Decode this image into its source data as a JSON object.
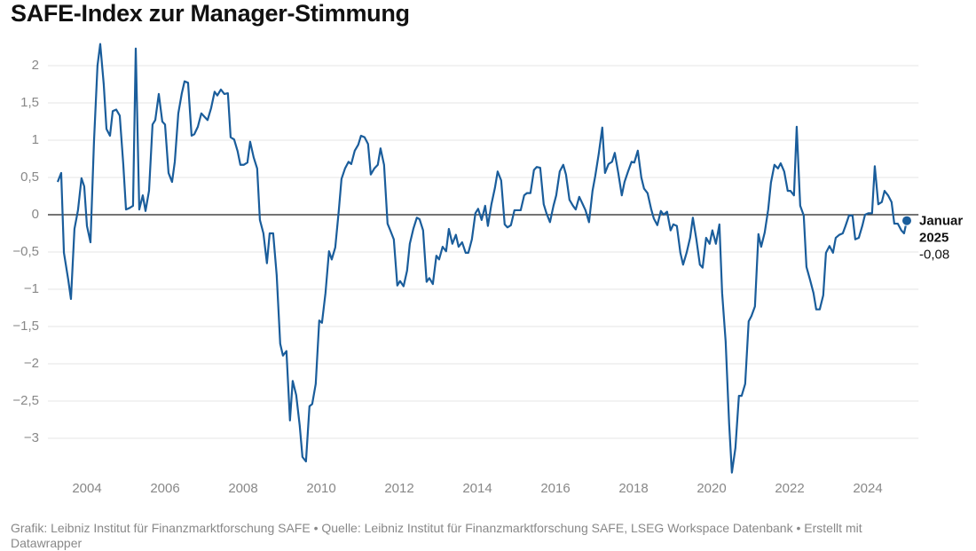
{
  "chart_data": {
    "type": "line",
    "title": "SAFE-Index zur Manager-Stimmung",
    "footer": "Grafik: Leibniz Institut für Finanzmarktforschung SAFE • Quelle: Leibniz Institut für Finanzmarktforschung SAFE, LSEG Workspace Datenbank • Erstellt mit Datawrapper",
    "annotation": {
      "text": [
        "Januar",
        "2025"
      ],
      "value_label": "-0,08"
    },
    "xlim": [
      2003,
      2025.3
    ],
    "xticks": [
      2004,
      2006,
      2008,
      2010,
      2012,
      2014,
      2016,
      2018,
      2020,
      2022,
      2024
    ],
    "ylim": [
      -3.5,
      2.3
    ],
    "yticks": [
      2,
      {
        "value": 1.5,
        "label": "1,5"
      },
      1,
      {
        "value": 0.5,
        "label": "0,5"
      },
      0,
      {
        "value": -0.5,
        "label": "−0,5"
      },
      {
        "value": -1,
        "label": "−1"
      },
      {
        "value": -1.5,
        "label": "−1,5"
      },
      {
        "value": -2,
        "label": "−2"
      },
      {
        "value": -2.5,
        "label": "−2,5"
      },
      {
        "value": -3,
        "label": "−3"
      }
    ],
    "grid": true,
    "x": [
      2003.25,
      2003.34,
      2003.41,
      2003.52,
      2003.59,
      2003.68,
      2003.77,
      2003.86,
      2003.93,
      2004.0,
      2004.09,
      2004.18,
      2004.27,
      2004.34,
      2004.43,
      2004.5,
      2004.59,
      2004.66,
      2004.75,
      2004.84,
      2004.93,
      2005.0,
      2005.09,
      2005.18,
      2005.25,
      2005.34,
      2005.43,
      2005.5,
      2005.59,
      2005.68,
      2005.75,
      2005.84,
      2005.93,
      2006.0,
      2006.09,
      2006.18,
      2006.25,
      2006.34,
      2006.43,
      2006.5,
      2006.59,
      2006.68,
      2006.75,
      2006.84,
      2006.93,
      2007.0,
      2007.09,
      2007.18,
      2007.27,
      2007.34,
      2007.43,
      2007.52,
      2007.61,
      2007.68,
      2007.77,
      2007.86,
      2007.93,
      2008.02,
      2008.11,
      2008.18,
      2008.27,
      2008.36,
      2008.43,
      2008.52,
      2008.61,
      2008.68,
      2008.77,
      2008.86,
      2008.95,
      2009.02,
      2009.11,
      2009.2,
      2009.27,
      2009.36,
      2009.45,
      2009.52,
      2009.61,
      2009.7,
      2009.77,
      2009.86,
      2009.95,
      2010.02,
      2010.11,
      2010.2,
      2010.27,
      2010.36,
      2010.45,
      2010.52,
      2010.61,
      2010.7,
      2010.77,
      2010.86,
      2010.95,
      2011.02,
      2011.11,
      2011.2,
      2011.27,
      2011.36,
      2011.45,
      2011.52,
      2011.61,
      2011.7,
      2011.77,
      2011.86,
      2011.95,
      2012.02,
      2012.11,
      2012.2,
      2012.27,
      2012.36,
      2012.45,
      2012.52,
      2012.61,
      2012.7,
      2012.77,
      2012.86,
      2012.95,
      2013.02,
      2013.11,
      2013.2,
      2013.27,
      2013.36,
      2013.45,
      2013.52,
      2013.61,
      2013.7,
      2013.77,
      2013.86,
      2013.95,
      2014.02,
      2014.11,
      2014.2,
      2014.27,
      2014.36,
      2014.45,
      2014.52,
      2014.61,
      2014.7,
      2014.77,
      2014.86,
      2014.95,
      2015.02,
      2015.11,
      2015.2,
      2015.27,
      2015.36,
      2015.45,
      2015.52,
      2015.61,
      2015.7,
      2015.77,
      2015.86,
      2015.95,
      2016.02,
      2016.11,
      2016.2,
      2016.27,
      2016.36,
      2016.45,
      2016.52,
      2016.61,
      2016.7,
      2016.77,
      2016.86,
      2016.95,
      2017.02,
      2017.11,
      2017.2,
      2017.27,
      2017.36,
      2017.45,
      2017.52,
      2017.61,
      2017.7,
      2017.77,
      2017.86,
      2017.95,
      2018.02,
      2018.11,
      2018.2,
      2018.27,
      2018.36,
      2018.45,
      2018.52,
      2018.61,
      2018.7,
      2018.77,
      2018.86,
      2018.95,
      2019.02,
      2019.11,
      2019.2,
      2019.27,
      2019.36,
      2019.45,
      2019.52,
      2019.61,
      2019.7,
      2019.77,
      2019.86,
      2019.95,
      2020.02,
      2020.11,
      2020.2,
      2020.27,
      2020.36,
      2020.45,
      2020.52,
      2020.61,
      2020.7,
      2020.77,
      2020.86,
      2020.95,
      2021.02,
      2021.11,
      2021.2,
      2021.27,
      2021.36,
      2021.45,
      2021.52,
      2021.61,
      2021.7,
      2021.77,
      2021.86,
      2021.95,
      2022.02,
      2022.11,
      2022.18,
      2022.27,
      2022.36,
      2022.43,
      2022.52,
      2022.61,
      2022.68,
      2022.77,
      2022.86,
      2022.93,
      2023.02,
      2023.11,
      2023.18,
      2023.27,
      2023.36,
      2023.43,
      2023.52,
      2023.61,
      2023.68,
      2023.77,
      2023.86,
      2023.93,
      2024.02,
      2024.11,
      2024.18,
      2024.27,
      2024.36,
      2024.43,
      2024.52,
      2024.61,
      2024.68,
      2024.77,
      2024.86,
      2024.93,
      2025.0
    ],
    "series": [
      {
        "color": "#1a5d9b",
        "values": [
          0.44,
          0.56,
          -0.51,
          -0.87,
          -1.13,
          -0.19,
          0.06,
          0.49,
          0.38,
          -0.15,
          -0.37,
          0.98,
          2.0,
          2.29,
          1.75,
          1.15,
          1.06,
          1.39,
          1.41,
          1.33,
          0.68,
          0.07,
          0.09,
          0.12,
          2.23,
          0.07,
          0.26,
          0.05,
          0.32,
          1.21,
          1.27,
          1.62,
          1.25,
          1.21,
          0.56,
          0.44,
          0.71,
          1.36,
          1.63,
          1.79,
          1.77,
          1.06,
          1.08,
          1.18,
          1.36,
          1.32,
          1.27,
          1.43,
          1.65,
          1.6,
          1.68,
          1.62,
          1.63,
          1.04,
          1.01,
          0.85,
          0.67,
          0.67,
          0.7,
          0.98,
          0.77,
          0.62,
          -0.07,
          -0.25,
          -0.65,
          -0.25,
          -0.25,
          -0.81,
          -1.73,
          -1.89,
          -1.83,
          -2.76,
          -2.23,
          -2.42,
          -2.83,
          -3.25,
          -3.31,
          -2.57,
          -2.54,
          -2.27,
          -1.42,
          -1.45,
          -1.05,
          -0.49,
          -0.6,
          -0.44,
          0.05,
          0.48,
          0.62,
          0.71,
          0.68,
          0.86,
          0.94,
          1.06,
          1.04,
          0.95,
          0.54,
          0.62,
          0.67,
          0.89,
          0.67,
          -0.12,
          -0.21,
          -0.33,
          -0.95,
          -0.89,
          -0.96,
          -0.75,
          -0.39,
          -0.19,
          -0.04,
          -0.06,
          -0.21,
          -0.9,
          -0.85,
          -0.93,
          -0.55,
          -0.6,
          -0.43,
          -0.49,
          -0.19,
          -0.39,
          -0.27,
          -0.43,
          -0.37,
          -0.51,
          -0.51,
          -0.33,
          0.02,
          0.08,
          -0.07,
          0.12,
          -0.15,
          0.14,
          0.36,
          0.58,
          0.46,
          -0.13,
          -0.17,
          -0.14,
          0.06,
          0.06,
          0.06,
          0.26,
          0.29,
          0.29,
          0.6,
          0.64,
          0.63,
          0.14,
          0.02,
          -0.1,
          0.12,
          0.26,
          0.58,
          0.67,
          0.54,
          0.2,
          0.12,
          0.07,
          0.24,
          0.14,
          0.06,
          -0.1,
          0.32,
          0.52,
          0.82,
          1.17,
          0.56,
          0.68,
          0.71,
          0.83,
          0.56,
          0.26,
          0.44,
          0.58,
          0.71,
          0.7,
          0.86,
          0.5,
          0.35,
          0.29,
          0.08,
          -0.05,
          -0.14,
          0.05,
          0.0,
          0.04,
          -0.21,
          -0.13,
          -0.15,
          -0.51,
          -0.67,
          -0.51,
          -0.31,
          -0.04,
          -0.33,
          -0.67,
          -0.71,
          -0.31,
          -0.39,
          -0.21,
          -0.39,
          -0.13,
          -1.05,
          -1.7,
          -2.81,
          -3.46,
          -3.13,
          -2.43,
          -2.43,
          -2.27,
          -1.43,
          -1.36,
          -1.23,
          -0.26,
          -0.43,
          -0.24,
          0.07,
          0.43,
          0.67,
          0.62,
          0.69,
          0.58,
          0.32,
          0.32,
          0.26,
          1.18,
          0.12,
          -0.01,
          -0.7,
          -0.87,
          -1.05,
          -1.27,
          -1.27,
          -1.08,
          -0.51,
          -0.42,
          -0.51,
          -0.31,
          -0.27,
          -0.25,
          -0.15,
          -0.01,
          -0.01,
          -0.33,
          -0.31,
          -0.15,
          0.0,
          0.02,
          0.02,
          0.65,
          0.14,
          0.17,
          0.32,
          0.26,
          0.17,
          -0.12,
          -0.12,
          -0.21,
          -0.25,
          -0.08
        ]
      }
    ]
  }
}
